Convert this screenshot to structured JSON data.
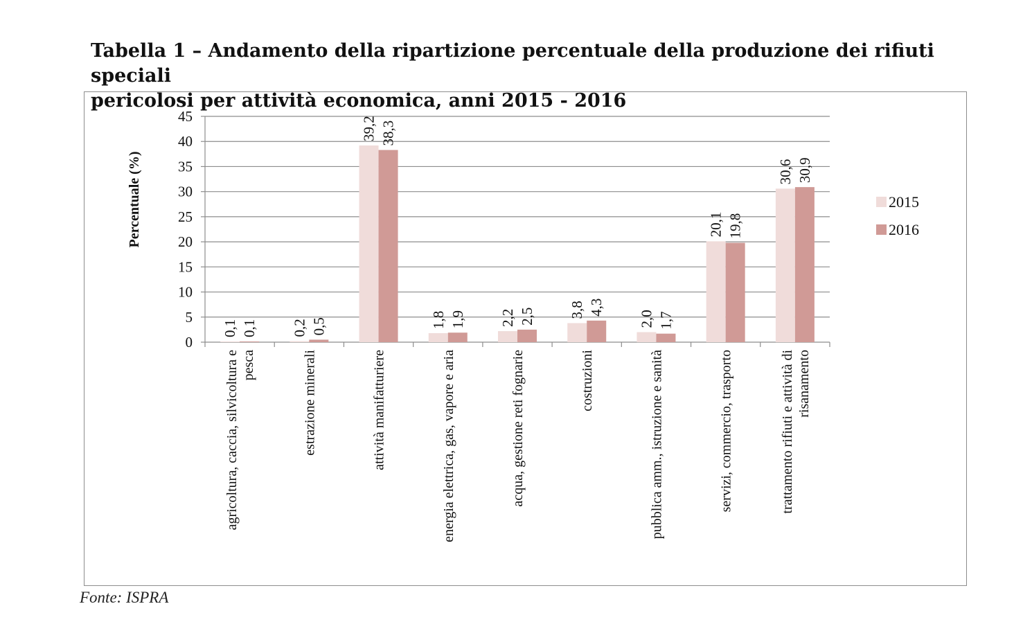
{
  "title_line1": "Tabella 1 – Andamento della ripartizione percentuale della produzione dei rifiuti speciali",
  "title_line2": "pericolosi per attività economica, anni 2015 - 2016",
  "source": "Fonte: ISPRA",
  "colors": {
    "s2015": "#f0dcda",
    "s2016": "#d09a96",
    "grid": "#8c8c8c",
    "axis": "#8c8c8c"
  },
  "chart_data": {
    "type": "bar",
    "ylabel": "Percentuale (%)",
    "ylim": [
      0,
      45
    ],
    "yticks": [
      0,
      5,
      10,
      15,
      20,
      25,
      30,
      35,
      40,
      45
    ],
    "grid": true,
    "legend_position": "right",
    "categories": [
      [
        "agricoltura, caccia, silvicoltura e",
        "pesca"
      ],
      [
        "estrazione minerali"
      ],
      [
        "attività manifatturiere"
      ],
      [
        "energia elettrica, gas, vapore e aria"
      ],
      [
        "acqua, gestione reti fognarie"
      ],
      [
        "costruzioni"
      ],
      [
        "pubblica amm., istruzione e sanità"
      ],
      [
        "servizi, commercio, trasporto"
      ],
      [
        "trattamento rifiuti e attività di",
        "risanamento"
      ]
    ],
    "series": [
      {
        "name": "2015",
        "values": [
          0.1,
          0.2,
          39.2,
          1.8,
          2.2,
          3.8,
          2.0,
          20.1,
          30.6
        ],
        "labels": [
          "0,1",
          "0,2",
          "39,2",
          "1,8",
          "2,2",
          "3,8",
          "2,0",
          "20,1",
          "30,6"
        ]
      },
      {
        "name": "2016",
        "values": [
          0.1,
          0.5,
          38.3,
          1.9,
          2.5,
          4.3,
          1.7,
          19.8,
          30.9
        ],
        "labels": [
          "0,1",
          "0,5",
          "38,3",
          "1,9",
          "2,5",
          "4,3",
          "1,7",
          "19,8",
          "30,9"
        ]
      }
    ]
  }
}
